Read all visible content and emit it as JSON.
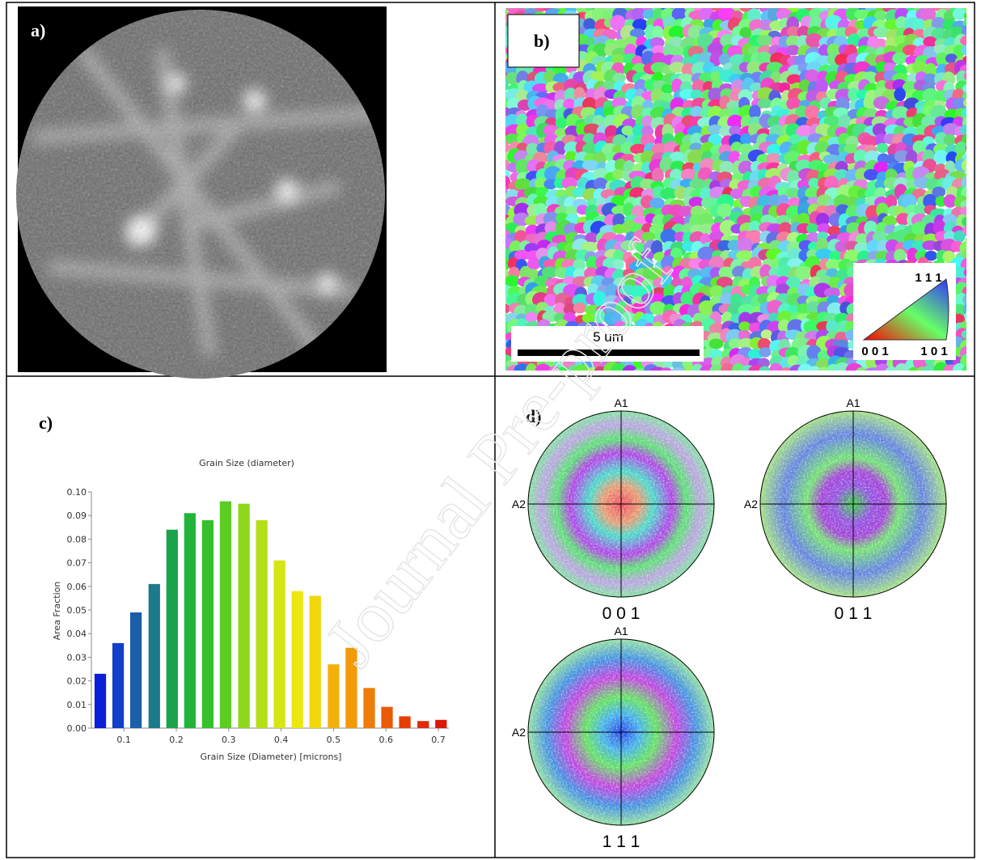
{
  "panels": {
    "a": {
      "label": "a)"
    },
    "b": {
      "label": "b)",
      "scale_bar": "5 um",
      "legend": {
        "top": "1 1 1",
        "left": "0 0 1",
        "right": "1 0 1"
      }
    },
    "c": {
      "label": "c)"
    },
    "d": {
      "label": "d)",
      "axis_top": "A1",
      "axis_left": "A2",
      "poles": [
        "0 0 1",
        "0 1 1",
        "1 1 1"
      ]
    }
  },
  "watermark": "Journal Pre-proof",
  "chart_data": {
    "type": "bar",
    "title": "Grain Size (diameter)",
    "x_label": "Grain Size (Diameter) [microns]",
    "y_label": "Area Fraction",
    "x": [
      0.055,
      0.089,
      0.123,
      0.158,
      0.192,
      0.226,
      0.26,
      0.294,
      0.329,
      0.363,
      0.397,
      0.431,
      0.465,
      0.5,
      0.534,
      0.568,
      0.602,
      0.636,
      0.671,
      0.705
    ],
    "values": [
      0.023,
      0.036,
      0.049,
      0.061,
      0.084,
      0.091,
      0.088,
      0.096,
      0.095,
      0.088,
      0.071,
      0.058,
      0.056,
      0.027,
      0.034,
      0.017,
      0.009,
      0.005,
      0.003,
      0.0035
    ],
    "colors": [
      "#0b1fd6",
      "#1040c8",
      "#1a5fa8",
      "#1d7a8a",
      "#1aa34a",
      "#20b43a",
      "#35c02c",
      "#5ccd22",
      "#8cd81b",
      "#b4df17",
      "#d6e514",
      "#eee610",
      "#f2d60c",
      "#f4b00a",
      "#f29a08",
      "#ee7c08",
      "#ea5a08",
      "#e53f08",
      "#e02a08",
      "#da1808"
    ],
    "xlim": [
      0.038,
      0.72
    ],
    "ylim": [
      0,
      0.1
    ],
    "xticks": [
      0.1,
      0.2,
      0.3,
      0.4,
      0.5,
      0.6,
      0.7
    ],
    "yticks": [
      {
        "value": 0,
        "label": "0.00"
      },
      {
        "value": 0.01,
        "label": "0.01"
      },
      {
        "value": 0.02,
        "label": "0.02"
      },
      {
        "value": 0.03,
        "label": "0.03"
      },
      {
        "value": 0.04,
        "label": "0.04"
      },
      {
        "value": 0.05,
        "label": "0.05"
      },
      {
        "value": 0.06,
        "label": "0.06"
      },
      {
        "value": 0.07,
        "label": "0.07"
      },
      {
        "value": 0.08,
        "label": "0.08"
      },
      {
        "value": 0.09,
        "label": "0.09"
      },
      {
        "value": 0.1,
        "label": "0.10"
      }
    ]
  }
}
